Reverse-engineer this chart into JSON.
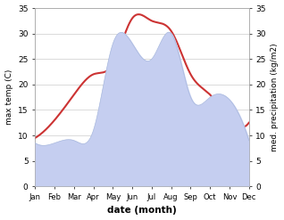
{
  "months": [
    "Jan",
    "Feb",
    "Mar",
    "Apr",
    "May",
    "Jun",
    "Jul",
    "Aug",
    "Sep",
    "Oct",
    "Nov",
    "Dec"
  ],
  "temperature": [
    9.5,
    13.0,
    18.0,
    22.0,
    24.0,
    33.0,
    32.5,
    30.5,
    22.0,
    18.0,
    13.0,
    12.5
  ],
  "precipitation": [
    8.5,
    8.5,
    9.0,
    11.0,
    28.0,
    28.0,
    25.0,
    30.0,
    17.5,
    17.5,
    17.0,
    9.0
  ],
  "temp_color": "#cc3333",
  "precip_color": "#c5cef0",
  "precip_edge_color": "#aabade",
  "temp_ylim": [
    0,
    35
  ],
  "precip_ylim": [
    0,
    35
  ],
  "xlabel": "date (month)",
  "ylabel_left": "max temp (C)",
  "ylabel_right": "med. precipitation (kg/m2)",
  "background_color": "#ffffff",
  "grid_color": "#cccccc",
  "yticks": [
    0,
    5,
    10,
    15,
    20,
    25,
    30,
    35
  ]
}
